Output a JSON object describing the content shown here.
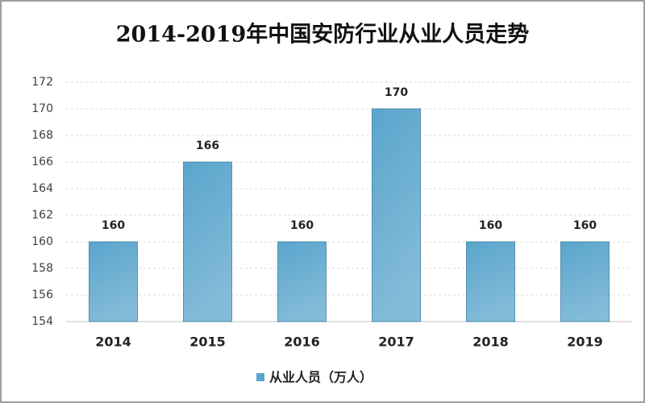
{
  "chart_data": {
    "type": "bar",
    "title": "2014-2019年中国安防行业从业人员走势",
    "categories": [
      "2014",
      "2015",
      "2016",
      "2017",
      "2018",
      "2019"
    ],
    "series": [
      {
        "name": "从业人员（万人）",
        "color": "#5aa5cc",
        "values": [
          160,
          166,
          160,
          170,
          160,
          160
        ]
      }
    ],
    "ylim": [
      154,
      172
    ],
    "yticks": [
      154,
      156,
      158,
      160,
      162,
      164,
      166,
      168,
      170,
      172
    ],
    "grid": true,
    "legend": "bottom"
  }
}
